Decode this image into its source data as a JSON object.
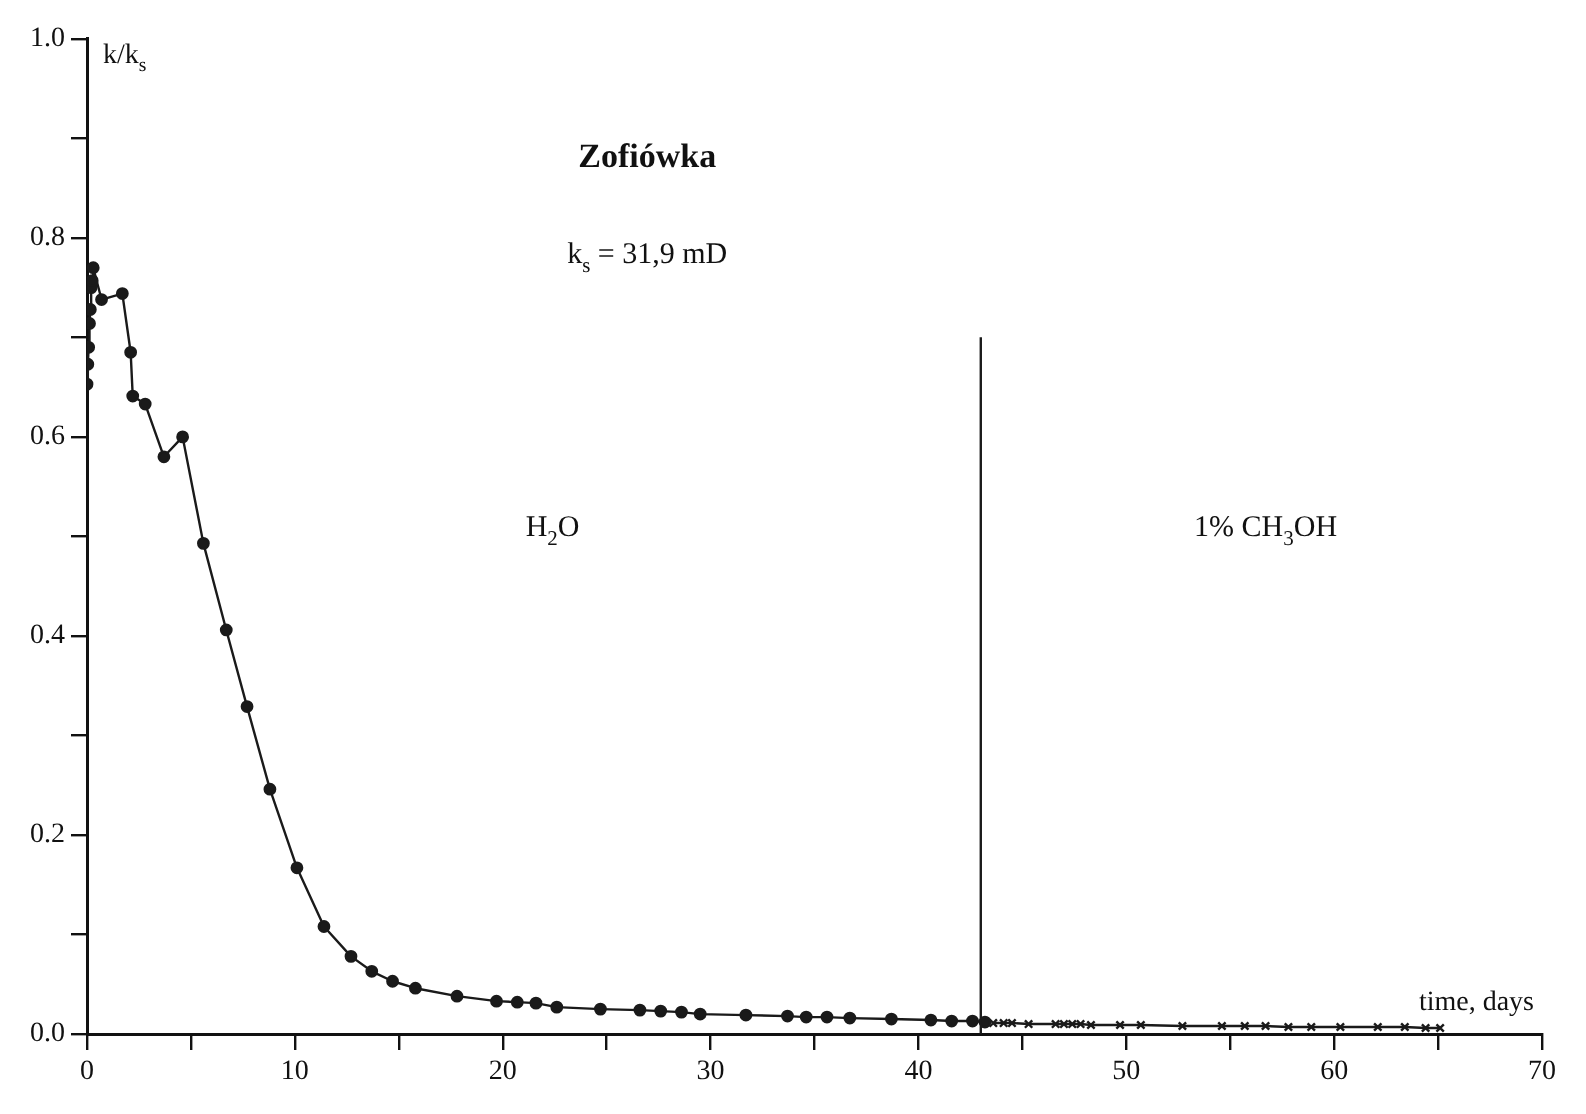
{
  "chart_data": {
    "type": "line",
    "title": "Zofiówka",
    "xlabel": "time, days",
    "ylabel": "k/k$_{s}$",
    "annotations": [
      "k$_{s}$ = 31,9 mD",
      "H$_{2}$O",
      "1% CH$_{3}$OH"
    ],
    "series": [
      {
        "color": "#1a1a1a",
        "marker": "circle",
        "x": [
          0.0,
          0.04,
          0.08,
          0.12,
          0.16,
          0.2,
          0.25,
          0.3,
          0.7,
          1.7,
          2.1,
          2.2,
          2.8,
          3.7,
          4.6,
          5.6,
          6.7,
          7.7,
          8.8,
          10.1,
          11.4,
          12.7,
          13.7,
          14.7,
          15.8,
          17.8,
          19.7,
          20.7,
          21.6,
          22.6,
          24.7,
          26.6,
          27.6,
          28.6,
          29.5,
          31.7,
          33.7,
          34.6,
          35.6,
          36.7,
          38.7,
          40.6,
          41.6,
          42.6,
          43.2
        ],
        "values": [
          0.653,
          0.673,
          0.69,
          0.714,
          0.728,
          0.75,
          0.757,
          0.77,
          0.738,
          0.744,
          0.685,
          0.641,
          0.633,
          0.58,
          0.6,
          0.493,
          0.406,
          0.329,
          0.246,
          0.167,
          0.108,
          0.078,
          0.063,
          0.053,
          0.046,
          0.038,
          0.033,
          0.032,
          0.031,
          0.027,
          0.025,
          0.024,
          0.023,
          0.022,
          0.02,
          0.019,
          0.018,
          0.017,
          0.017,
          0.016,
          0.015,
          0.014,
          0.013,
          0.013,
          0.012
        ]
      },
      {
        "color": "#1a1a1a",
        "marker": "cross",
        "x": [
          43.6,
          44.1,
          44.5,
          45.3,
          46.6,
          47.0,
          47.4,
          47.8,
          48.3,
          49.7,
          50.7,
          52.7,
          54.6,
          55.7,
          56.7,
          57.8,
          58.9,
          60.3,
          62.1,
          63.4,
          64.4,
          65.1
        ],
        "values": [
          0.011,
          0.011,
          0.011,
          0.01,
          0.01,
          0.01,
          0.01,
          0.01,
          0.009,
          0.009,
          0.009,
          0.008,
          0.008,
          0.008,
          0.008,
          0.007,
          0.007,
          0.007,
          0.007,
          0.007,
          0.006,
          0.006
        ]
      }
    ],
    "ref_lines": [
      {
        "axis": "x",
        "value": 43,
        "color": "#1a1a1a"
      }
    ],
    "xlim": [
      0,
      70
    ],
    "ylim": [
      0,
      1.0
    ],
    "xticks": [
      0,
      {
        "value": 5,
        "label": null
      },
      10,
      {
        "value": 15,
        "label": null
      },
      20,
      {
        "value": 25,
        "label": null
      },
      30,
      {
        "value": 35,
        "label": null
      },
      40,
      {
        "value": 45,
        "label": null
      },
      50,
      {
        "value": 55,
        "label": null
      },
      60,
      {
        "value": 65,
        "label": null
      },
      70
    ],
    "yticks": [
      {
        "value": 0,
        "label": "0.0"
      },
      {
        "value": 0.1,
        "label": null
      },
      0.2,
      {
        "value": 0.3,
        "label": null
      },
      0.4,
      {
        "value": 0.5,
        "label": null
      },
      0.6,
      {
        "value": 0.7,
        "label": null
      },
      0.8,
      {
        "value": 0.9,
        "label": null
      },
      {
        "value": 1.0,
        "label": "1.0"
      }
    ],
    "grid": false,
    "legend": false
  }
}
